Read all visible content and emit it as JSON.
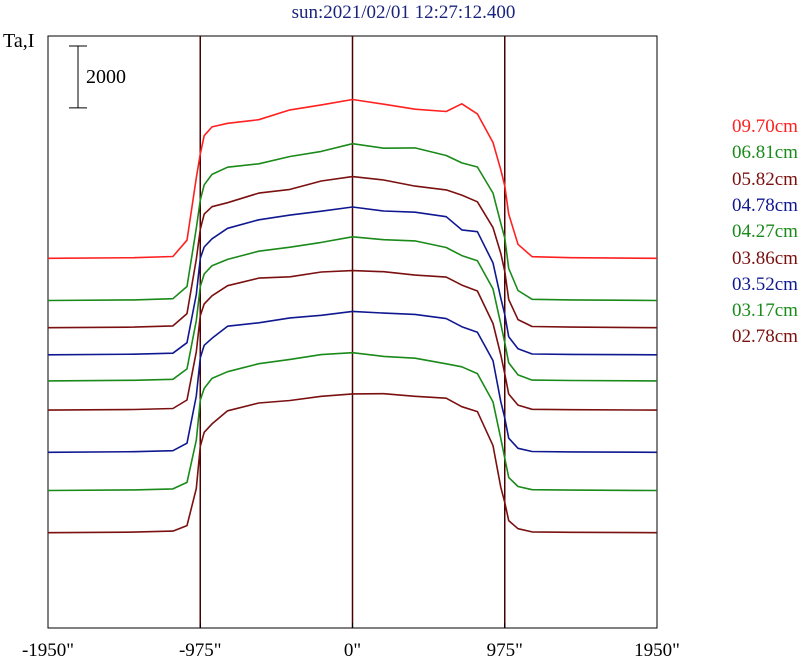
{
  "title": "sun:2021/02/01 12:27:12.400",
  "ylabel": "Ta,I",
  "scale_bar_label": "2000",
  "colors": {
    "title": "#1a237e",
    "axis": "#000000",
    "markers": "#4a0000"
  },
  "chart_data": {
    "type": "line",
    "title": "sun:2021/02/01 12:27:12.400",
    "ylabel": "Ta,I",
    "xlabel": "",
    "xlim": [
      -1950,
      1950
    ],
    "x_ticks": [
      -1950,
      -975,
      0,
      975,
      1950
    ],
    "x_tick_labels": [
      "-1950\"",
      "-975\"",
      "0\"",
      "975\"",
      "1950\""
    ],
    "vertical_markers": [
      -975,
      0,
      975
    ],
    "scale_bar": {
      "value": 2000,
      "label": "2000"
    },
    "series_offset": 2100,
    "disk_profile_x": [
      -1950,
      -1400,
      -1150,
      -1060,
      -1000,
      -975,
      -950,
      -900,
      -800,
      -600,
      -400,
      -200,
      0,
      200,
      400,
      600,
      700,
      800,
      900,
      950,
      975,
      1000,
      1060,
      1150,
      1400,
      1950
    ],
    "series": [
      {
        "name": "09.70cm",
        "color": "#ff2020",
        "baseline": 16800,
        "values": [
          0,
          30,
          90,
          900,
          4000,
          5200,
          6100,
          6500,
          6700,
          6900,
          7300,
          7600,
          7900,
          7700,
          7500,
          7300,
          7700,
          7200,
          5800,
          4400,
          3600,
          2200,
          700,
          80,
          30,
          0
        ]
      },
      {
        "name": "06.81cm",
        "color": "#1a8a1a",
        "baseline": 14700,
        "values": [
          0,
          30,
          90,
          700,
          3600,
          5000,
          5800,
          6300,
          6600,
          6800,
          7200,
          7500,
          7800,
          7600,
          7500,
          7200,
          6900,
          6600,
          5300,
          3900,
          3100,
          1600,
          500,
          60,
          30,
          0
        ]
      },
      {
        "name": "05.82cm",
        "color": "#7a1010",
        "baseline": 13350,
        "values": [
          0,
          30,
          90,
          700,
          3400,
          4900,
          5600,
          6000,
          6300,
          6700,
          6900,
          7200,
          7500,
          7300,
          7100,
          6900,
          6500,
          6300,
          5000,
          3600,
          2800,
          1400,
          400,
          60,
          30,
          0
        ]
      },
      {
        "name": "04.78cm",
        "color": "#101890",
        "baseline": 12000,
        "values": [
          0,
          30,
          80,
          600,
          3000,
          4800,
          5400,
          5800,
          6200,
          6700,
          6900,
          7200,
          7400,
          7200,
          7100,
          6800,
          6300,
          6100,
          4600,
          2900,
          2000,
          900,
          300,
          40,
          20,
          0
        ]
      },
      {
        "name": "04.27cm",
        "color": "#1a8a1a",
        "baseline": 10700,
        "values": [
          0,
          30,
          80,
          600,
          3000,
          4700,
          5300,
          5700,
          6100,
          6500,
          6700,
          6900,
          7100,
          7000,
          6900,
          6700,
          6200,
          6000,
          4500,
          2800,
          1900,
          900,
          300,
          40,
          20,
          0
        ]
      },
      {
        "name": "03.86cm",
        "color": "#7a1010",
        "baseline": 9250,
        "values": [
          0,
          30,
          80,
          500,
          2900,
          4700,
          5300,
          5700,
          6200,
          6500,
          6600,
          6800,
          7000,
          6900,
          6800,
          6600,
          6200,
          5900,
          4400,
          2700,
          1800,
          800,
          250,
          40,
          20,
          0
        ]
      },
      {
        "name": "03.52cm",
        "color": "#101890",
        "baseline": 7150,
        "values": [
          0,
          30,
          80,
          450,
          2800,
          4700,
          5300,
          5700,
          6200,
          6500,
          6700,
          6900,
          7000,
          6900,
          6800,
          6600,
          6300,
          6000,
          4500,
          2600,
          1700,
          700,
          200,
          40,
          20,
          0
        ]
      },
      {
        "name": "03.17cm",
        "color": "#1a8a1a",
        "baseline": 5250,
        "values": [
          0,
          30,
          80,
          400,
          2500,
          4500,
          5100,
          5500,
          6000,
          6300,
          6500,
          6700,
          6800,
          6700,
          6600,
          6400,
          6100,
          5800,
          4400,
          2500,
          1600,
          650,
          200,
          40,
          20,
          0
        ]
      },
      {
        "name": "02.78cm",
        "color": "#7a1010",
        "baseline": 3150,
        "values": [
          0,
          30,
          80,
          350,
          2200,
          4300,
          5000,
          5500,
          6000,
          6400,
          6600,
          6800,
          7000,
          6900,
          6800,
          6600,
          6300,
          6000,
          4400,
          2300,
          1500,
          600,
          200,
          40,
          20,
          0
        ]
      }
    ]
  }
}
